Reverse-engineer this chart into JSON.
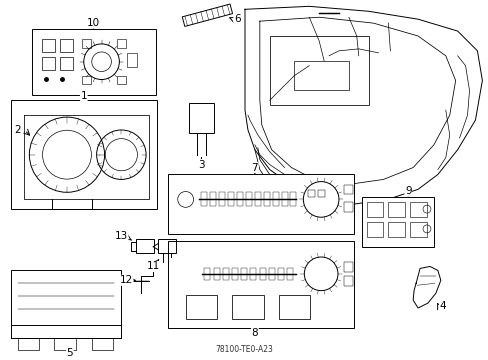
{
  "background_color": "#ffffff",
  "fig_width": 4.89,
  "fig_height": 3.6,
  "dpi": 100,
  "lw": 0.7,
  "ec": "#000000",
  "label_fontsize": 7.5
}
